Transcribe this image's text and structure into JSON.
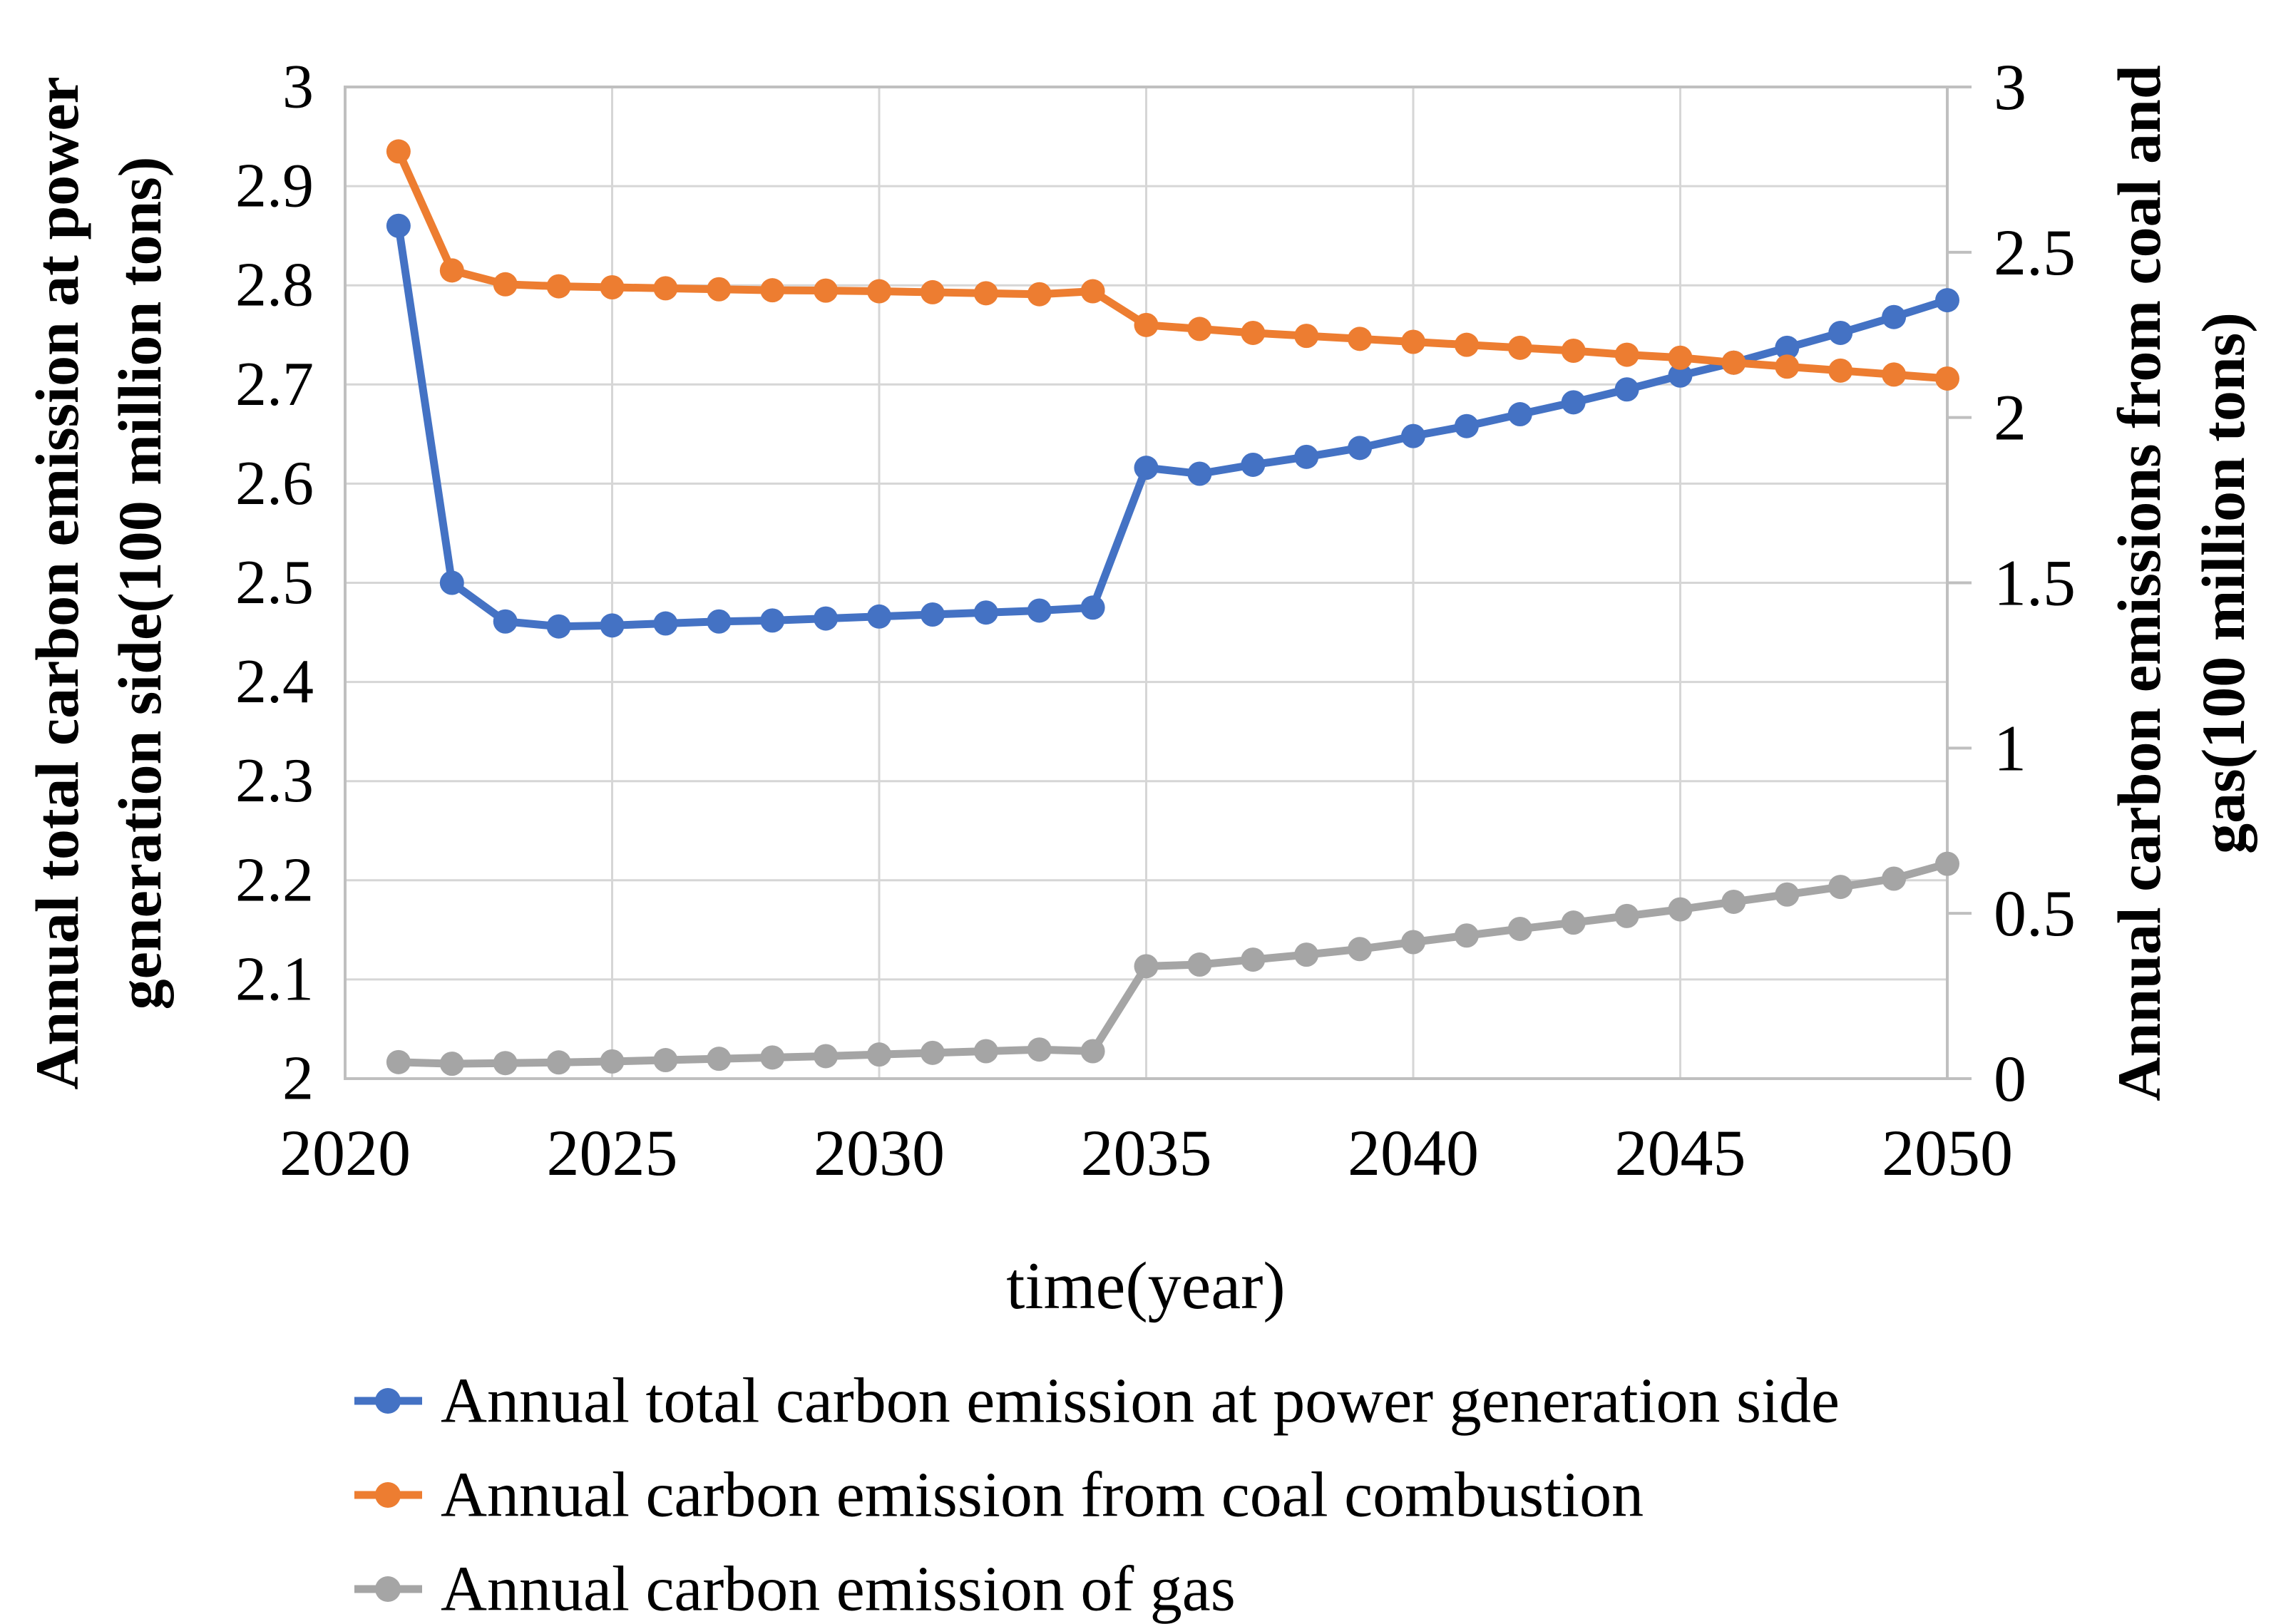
{
  "figure": {
    "background": "#ffffff",
    "gridline_color": "#d6d6d6",
    "border_color": "#bfbfbf",
    "tick_mark_color": "#bfbfbf",
    "text_color": "#000000"
  },
  "chart_data": {
    "type": "line",
    "title": "",
    "xlabel": "time(year)",
    "grid": true,
    "legend_position": "bottom-left",
    "x_axis": {
      "min": 2020,
      "max": 2050,
      "ticks": [
        2020,
        2025,
        2030,
        2035,
        2040,
        2045,
        2050
      ]
    },
    "left_axis": {
      "label_line1": "Annual total carbon emission at power",
      "label_line2": "generation side(100 million tons)",
      "min": 2,
      "max": 3,
      "ticks": [
        3,
        2.9,
        2.8,
        2.7,
        2.6,
        2.5,
        2.4,
        2.3,
        2.2,
        2.1,
        2
      ]
    },
    "right_axis": {
      "label_line1": "Annual carbon emissions from coal and",
      "label_line2": "gas(100 million tons)",
      "min": 0,
      "max": 3,
      "ticks": [
        3,
        2.5,
        2,
        1.5,
        1,
        0.5,
        0
      ]
    },
    "x": [
      2021,
      2022,
      2023,
      2024,
      2025,
      2026,
      2027,
      2028,
      2029,
      2030,
      2031,
      2032,
      2033,
      2034,
      2035,
      2036,
      2037,
      2038,
      2039,
      2040,
      2041,
      2042,
      2043,
      2044,
      2045,
      2046,
      2047,
      2048,
      2049,
      2050
    ],
    "series": [
      {
        "name": "Annual total carbon emission at power generation side",
        "color": "#4472C4",
        "axis": "left",
        "values": [
          2.86,
          2.5,
          2.461,
          2.456,
          2.457,
          2.459,
          2.461,
          2.462,
          2.464,
          2.466,
          2.468,
          2.47,
          2.472,
          2.475,
          2.616,
          2.61,
          2.619,
          2.627,
          2.636,
          2.648,
          2.658,
          2.67,
          2.682,
          2.695,
          2.709,
          2.722,
          2.737,
          2.752,
          2.768,
          2.785
        ]
      },
      {
        "name": "Annual carbon emission from coal combustion",
        "color": "#ED7D31",
        "axis": "right",
        "values": [
          2.805,
          2.445,
          2.403,
          2.397,
          2.394,
          2.391,
          2.388,
          2.385,
          2.384,
          2.382,
          2.379,
          2.376,
          2.373,
          2.382,
          2.28,
          2.268,
          2.256,
          2.247,
          2.238,
          2.229,
          2.22,
          2.211,
          2.202,
          2.19,
          2.181,
          2.166,
          2.154,
          2.142,
          2.13,
          2.118
        ]
      },
      {
        "name": "Annual carbon emission of gas",
        "color": "#A5A5A5",
        "axis": "right",
        "values": [
          0.05,
          0.045,
          0.047,
          0.049,
          0.052,
          0.056,
          0.06,
          0.064,
          0.068,
          0.073,
          0.078,
          0.083,
          0.088,
          0.083,
          0.34,
          0.345,
          0.36,
          0.375,
          0.392,
          0.413,
          0.433,
          0.453,
          0.472,
          0.492,
          0.512,
          0.535,
          0.557,
          0.58,
          0.605,
          0.65
        ]
      }
    ]
  }
}
